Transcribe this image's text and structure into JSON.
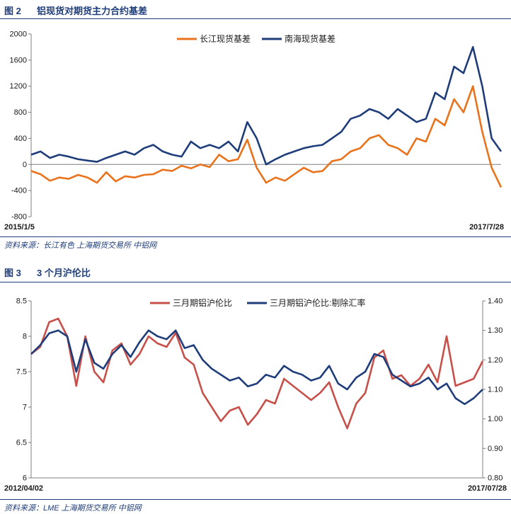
{
  "figure1": {
    "number": "图 2",
    "title": "铝现货对期货主力合约基差",
    "source": "资料来源：长江有色   上海期货交易所   中铝网"
  },
  "figure2": {
    "number": "图 3",
    "title": "3 个月沪伦比",
    "source": "资料来源：LME   上海期货交易所   中铝网"
  },
  "chart_data": [
    {
      "type": "line",
      "title": "铝现货对期货主力合约基差",
      "x_start_label": "2015/1/5",
      "x_end_label": "2017/7/28",
      "ylim": [
        -800,
        2000
      ],
      "yticks": [
        -800,
        -400,
        0,
        400,
        800,
        1200,
        1600,
        2000
      ],
      "legend_position": "top-center",
      "grid": false,
      "x": [
        0,
        0.02,
        0.04,
        0.06,
        0.08,
        0.1,
        0.12,
        0.14,
        0.16,
        0.18,
        0.2,
        0.22,
        0.24,
        0.26,
        0.28,
        0.3,
        0.32,
        0.34,
        0.36,
        0.38,
        0.4,
        0.42,
        0.44,
        0.46,
        0.48,
        0.5,
        0.52,
        0.54,
        0.56,
        0.58,
        0.6,
        0.62,
        0.64,
        0.66,
        0.68,
        0.7,
        0.72,
        0.74,
        0.76,
        0.78,
        0.8,
        0.82,
        0.84,
        0.86,
        0.88,
        0.9,
        0.92,
        0.94,
        0.96,
        0.98,
        1.0
      ],
      "series": [
        {
          "name": "长江现货基差",
          "color": "#e8731c",
          "values": [
            -100,
            -150,
            -250,
            -200,
            -220,
            -160,
            -200,
            -280,
            -120,
            -260,
            -180,
            -200,
            -160,
            -150,
            -80,
            -100,
            -20,
            -60,
            0,
            -40,
            150,
            50,
            80,
            380,
            -50,
            -280,
            -200,
            -250,
            -150,
            -50,
            -120,
            -100,
            50,
            80,
            200,
            250,
            400,
            450,
            300,
            250,
            150,
            400,
            350,
            700,
            600,
            1000,
            800,
            1200,
            500,
            -50,
            -350
          ]
        },
        {
          "name": "南海现货基差",
          "color": "#1f3d7a",
          "values": [
            150,
            200,
            100,
            150,
            120,
            80,
            60,
            40,
            100,
            150,
            200,
            150,
            250,
            300,
            200,
            150,
            120,
            350,
            250,
            300,
            250,
            350,
            200,
            650,
            400,
            0,
            80,
            150,
            200,
            250,
            280,
            300,
            400,
            500,
            700,
            750,
            850,
            800,
            700,
            850,
            750,
            650,
            700,
            1100,
            1000,
            1500,
            1400,
            1800,
            1200,
            400,
            200
          ]
        }
      ]
    },
    {
      "type": "line",
      "title": "3 个月沪伦比",
      "x_start_label": "2012/04/02",
      "x_end_label": "2017/07/28",
      "ylim": [
        6,
        8.5
      ],
      "yticks": [
        6,
        6.5,
        7,
        7.5,
        8,
        8.5
      ],
      "y2lim": [
        0.8,
        1.4
      ],
      "y2ticks": [
        "0.80",
        "0.90",
        "1.00",
        "1.10",
        "1.20",
        "1.30",
        "1.40"
      ],
      "legend_position": "top-center",
      "grid": false,
      "x": [
        0,
        0.02,
        0.04,
        0.06,
        0.08,
        0.1,
        0.12,
        0.14,
        0.16,
        0.18,
        0.2,
        0.22,
        0.24,
        0.26,
        0.28,
        0.3,
        0.32,
        0.34,
        0.36,
        0.38,
        0.4,
        0.42,
        0.44,
        0.46,
        0.48,
        0.5,
        0.52,
        0.54,
        0.56,
        0.58,
        0.6,
        0.62,
        0.64,
        0.66,
        0.68,
        0.7,
        0.72,
        0.74,
        0.76,
        0.78,
        0.8,
        0.82,
        0.84,
        0.86,
        0.88,
        0.9,
        0.92,
        0.94,
        0.96,
        0.98,
        1.0
      ],
      "series": [
        {
          "name": "三月期铝沪伦比",
          "color": "#c8504a",
          "axis": "left",
          "values": [
            7.75,
            7.85,
            8.2,
            8.25,
            8.0,
            7.3,
            8.0,
            7.5,
            7.35,
            7.8,
            7.9,
            7.6,
            7.75,
            8.0,
            7.9,
            7.85,
            8.05,
            7.7,
            7.6,
            7.2,
            7.0,
            6.8,
            6.95,
            7.0,
            6.75,
            6.9,
            7.1,
            7.05,
            7.4,
            7.3,
            7.2,
            7.1,
            7.2,
            7.35,
            7.0,
            6.7,
            7.05,
            7.2,
            7.7,
            7.8,
            7.4,
            7.45,
            7.3,
            7.4,
            7.6,
            7.35,
            8.0,
            7.3,
            7.35,
            7.4,
            7.65
          ]
        },
        {
          "name": "三月期铝沪伦比:剔除汇率",
          "color": "#1f3d7a",
          "axis": "right",
          "values": [
            1.22,
            1.25,
            1.29,
            1.3,
            1.28,
            1.16,
            1.27,
            1.19,
            1.17,
            1.22,
            1.25,
            1.21,
            1.26,
            1.3,
            1.28,
            1.27,
            1.3,
            1.24,
            1.25,
            1.2,
            1.17,
            1.15,
            1.13,
            1.14,
            1.11,
            1.12,
            1.15,
            1.14,
            1.18,
            1.16,
            1.15,
            1.13,
            1.14,
            1.18,
            1.12,
            1.1,
            1.14,
            1.16,
            1.22,
            1.21,
            1.15,
            1.13,
            1.11,
            1.12,
            1.14,
            1.1,
            1.12,
            1.07,
            1.05,
            1.07,
            1.1
          ]
        }
      ]
    }
  ]
}
